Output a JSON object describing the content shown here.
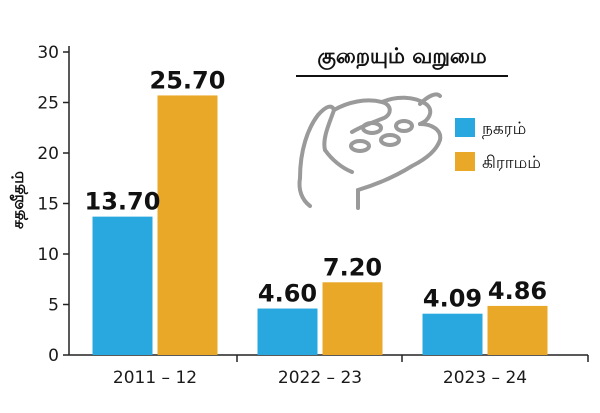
{
  "chart_data": {
    "type": "bar",
    "title": "குறையும் வறுமை",
    "ylabel": "சதவீதம்",
    "ylim": [
      0,
      30
    ],
    "yticks": [
      0,
      5,
      10,
      15,
      20,
      25,
      30
    ],
    "grid": false,
    "legend_position": "right",
    "categories": [
      "2011 – 12",
      "2022 – 23",
      "2023 – 24"
    ],
    "series": [
      {
        "name": "நகரம்",
        "color": "#29a8df",
        "values": [
          13.7,
          4.6,
          4.09
        ],
        "labels": [
          "13.70",
          "4.60",
          "4.09"
        ]
      },
      {
        "name": "கிராமம்",
        "color": "#eaa829",
        "values": [
          25.7,
          7.2,
          4.86
        ],
        "labels": [
          "25.70",
          "7.20",
          "4.86"
        ]
      }
    ],
    "decoration_icon": "cupped-hands-with-coins-icon"
  }
}
